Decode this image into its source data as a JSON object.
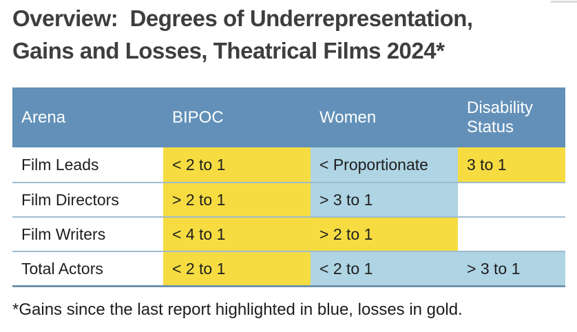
{
  "title": "Overview:  Degrees of Underrepresentation,\nGains and Losses, Theatrical Films 2024*",
  "footnote": "*Gains since the last report highlighted in blue, losses in gold.",
  "colors": {
    "title_text": "#3E3E40",
    "header_bg": "#6290B8",
    "header_text": "#FFFFFF",
    "body_text": "#1E1E1E",
    "gold_highlight": "#F6DC41",
    "blue_highlight": "#AFD4E3",
    "row_separator": "#9EBBCD",
    "table_bottom_border": "#6E93AC",
    "footnote_text": "#1C1C1C",
    "background": "#FFFFFF"
  },
  "legend": {
    "gain_highlight": "blue",
    "loss_highlight": "gold"
  },
  "chart_data": {
    "type": "table",
    "title": "Overview: Degrees of Underrepresentation, Gains and Losses, Theatrical Films 2024*",
    "columns": [
      "Arena",
      "BIPOC",
      "Women",
      "Disability Status"
    ],
    "rows": [
      [
        "Film Leads",
        "< 2 to 1",
        "< Proportionate",
        "3 to 1"
      ],
      [
        "Film Directors",
        "> 2 to 1",
        "> 3 to 1",
        ""
      ],
      [
        "Film Writers",
        "< 4 to 1",
        "> 2 to 1",
        ""
      ],
      [
        "Total Actors",
        "< 2 to 1",
        "< 2 to 1",
        "> 3 to 1"
      ]
    ],
    "cell_highlights": [
      [
        "none",
        "gold",
        "blue",
        "gold"
      ],
      [
        "none",
        "gold",
        "blue",
        "none"
      ],
      [
        "none",
        "gold",
        "gold",
        "none"
      ],
      [
        "none",
        "gold",
        "blue",
        "blue"
      ]
    ],
    "footnote": "*Gains since the last report highlighted in blue, losses in gold.",
    "highlight_meaning": {
      "blue": "gain since last report",
      "gold": "loss since last report"
    }
  },
  "table": {
    "columns": [
      {
        "key": "arena",
        "label": "Arena"
      },
      {
        "key": "bipoc",
        "label": "BIPOC"
      },
      {
        "key": "women",
        "label": "Women"
      },
      {
        "key": "disability",
        "label": "Disability Status"
      }
    ],
    "rows": [
      {
        "arena": "Film Leads",
        "cells": [
          {
            "col": "bipoc",
            "text": "< 2 to 1",
            "highlight": "gold"
          },
          {
            "col": "women",
            "text": "< Proportionate",
            "highlight": "blue"
          },
          {
            "col": "disability",
            "text": "3 to 1",
            "highlight": "gold"
          }
        ]
      },
      {
        "arena": "Film Directors",
        "cells": [
          {
            "col": "bipoc",
            "text": "> 2 to 1",
            "highlight": "gold"
          },
          {
            "col": "women",
            "text": "> 3 to 1",
            "highlight": "blue"
          },
          {
            "col": "disability",
            "text": "",
            "highlight": "none"
          }
        ]
      },
      {
        "arena": "Film Writers",
        "cells": [
          {
            "col": "bipoc",
            "text": "< 4 to 1",
            "highlight": "gold"
          },
          {
            "col": "women",
            "text": "> 2 to 1",
            "highlight": "gold"
          },
          {
            "col": "disability",
            "text": "",
            "highlight": "none"
          }
        ]
      },
      {
        "arena": "Total Actors",
        "cells": [
          {
            "col": "bipoc",
            "text": "< 2 to 1",
            "highlight": "gold"
          },
          {
            "col": "women",
            "text": "< 2 to 1",
            "highlight": "blue"
          },
          {
            "col": "disability",
            "text": "> 3 to 1",
            "highlight": "blue"
          }
        ]
      }
    ]
  }
}
